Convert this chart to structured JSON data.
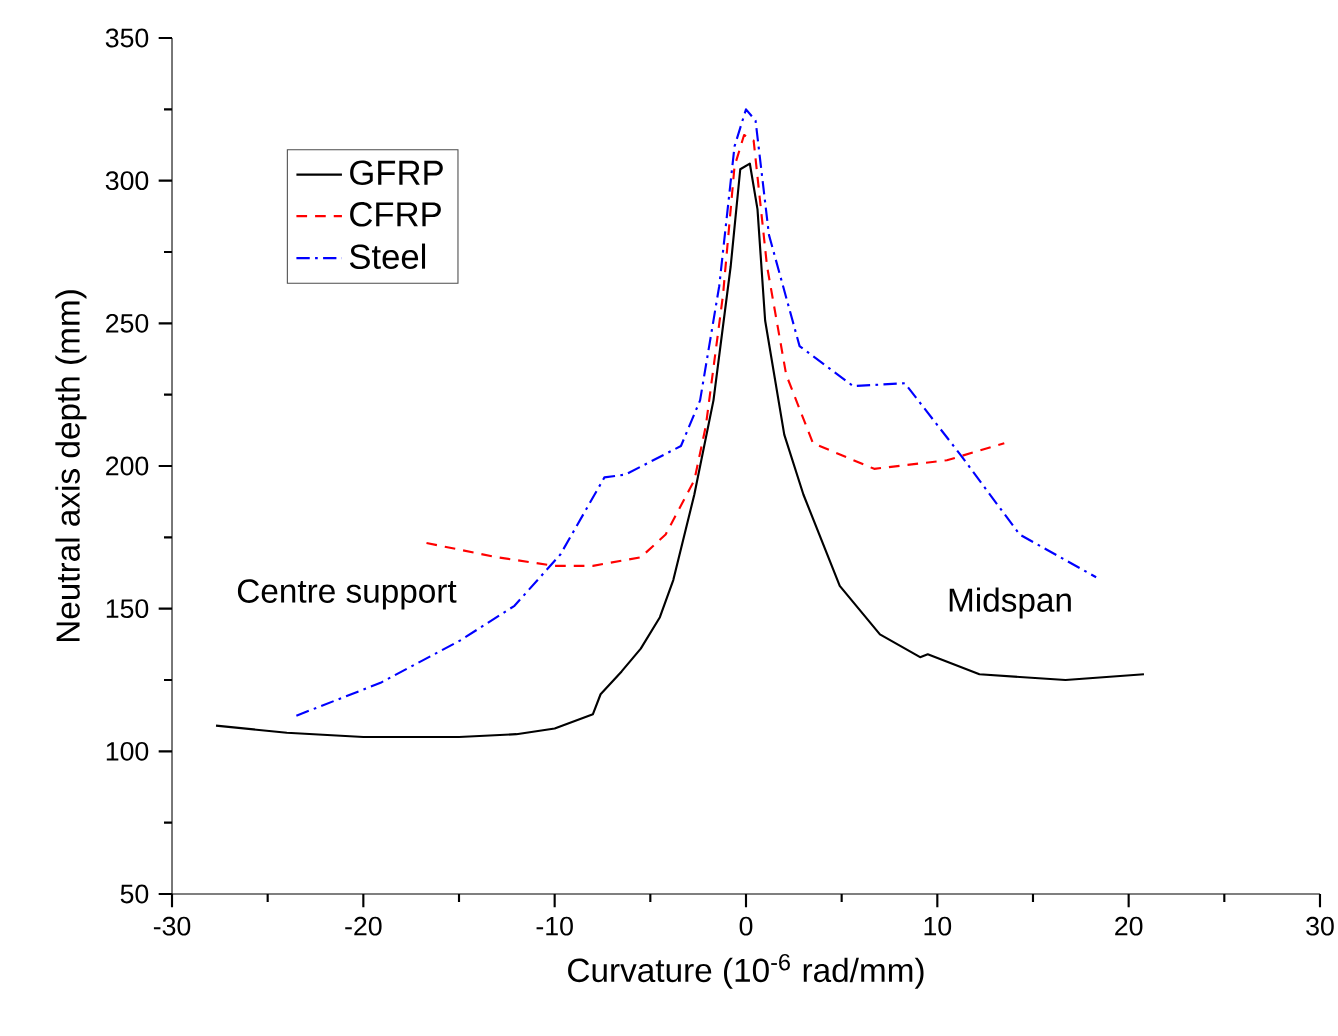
{
  "chart_data": {
    "type": "line",
    "xlabel": "Curvature (10$^{-6}$ rad/mm)",
    "ylabel": "Neutral axis depth (mm)",
    "xlim": [
      -30,
      30
    ],
    "xticks": [
      -30,
      -20,
      -10,
      0,
      10,
      20,
      30
    ],
    "ylim": [
      50,
      350
    ],
    "yticks": [
      50,
      100,
      150,
      200,
      250,
      300,
      350
    ],
    "legend": "top left",
    "grid": false,
    "annotations": [
      "Centre support",
      "Midspan"
    ],
    "series": [
      {
        "name": "GFRP",
        "color": "#000000",
        "line_style": "solid",
        "x": [
          -27.7,
          -24,
          -20,
          -15,
          -12,
          -10,
          -8,
          -7.6,
          -6.5,
          -5.5,
          -4.5,
          -3.8,
          -2.7,
          -1.7,
          -0.8,
          -0.3,
          0.2,
          0.6,
          1.0,
          2.0,
          3.0,
          4.9,
          7.0,
          9.1,
          9.5,
          12.2,
          16.7,
          20.8
        ],
        "values": [
          109,
          106.5,
          105,
          105,
          106,
          108,
          113,
          120,
          128,
          136,
          147,
          160,
          190,
          223,
          270,
          304,
          306,
          290,
          251,
          211,
          190,
          158,
          141,
          133,
          134,
          127,
          125,
          127
        ]
      },
      {
        "name": "CFRP",
        "color": "#ff0000",
        "line_style": "dashed",
        "x": [
          -16.7,
          -13,
          -10,
          -8,
          -5.5,
          -4.2,
          -2.7,
          -2.1,
          -1.2,
          -0.6,
          -0.1,
          0.4,
          1.1,
          2.1,
          3.5,
          6.7,
          10.5,
          13.5
        ],
        "values": [
          173,
          168,
          165,
          165,
          168,
          176,
          195,
          214,
          260,
          305,
          316,
          314,
          270,
          232,
          208,
          199,
          202,
          208
        ]
      },
      {
        "name": "Steel",
        "color": "#0000ff",
        "line_style": "dashdot",
        "x": [
          -23.5,
          -19.1,
          -14.9,
          -12.1,
          -9.7,
          -7.4,
          -6.3,
          -3.4,
          -2.4,
          -1.4,
          -0.6,
          0.0,
          0.5,
          1.2,
          2.8,
          5.6,
          8.3,
          11.2,
          14.3,
          18.3
        ],
        "values": [
          112.5,
          124,
          139,
          151,
          169,
          196,
          197,
          207,
          223,
          263,
          312,
          325,
          321,
          281,
          242,
          228,
          229,
          204,
          176,
          161
        ]
      }
    ]
  }
}
